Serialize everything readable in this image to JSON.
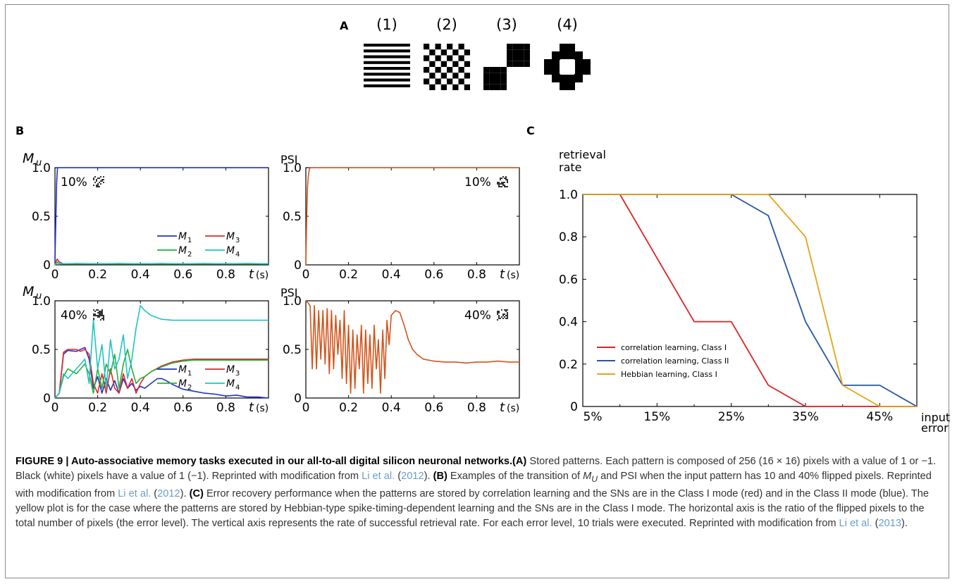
{
  "panel_a": {
    "label": "A",
    "patterns": [
      {
        "label": "(1)",
        "kind": "horizontal-stripes"
      },
      {
        "label": "(2)",
        "kind": "checkerboard"
      },
      {
        "label": "(3)",
        "kind": "diagonal-blocks"
      },
      {
        "label": "(4)",
        "kind": "ring"
      }
    ]
  },
  "panel_b": {
    "label": "B",
    "tick_y": [
      "0",
      "0.5",
      "1.0"
    ],
    "tick_x": [
      "0",
      "0.2",
      "0.4",
      "0.6",
      "0.8"
    ],
    "x_axis_label": "t",
    "x_axis_unit": "(s)",
    "legend": [
      {
        "sym": "M",
        "sub": "1",
        "color": "#1f32cc"
      },
      {
        "sym": "M",
        "sub": "3",
        "color": "#e02a2a"
      },
      {
        "sym": "M",
        "sub": "2",
        "color": "#22b33a"
      },
      {
        "sym": "M",
        "sub": "4",
        "color": "#22c2c2"
      }
    ],
    "plots": [
      {
        "ylabel": "M",
        "ylabel_sub": "u",
        "tag": "10%"
      },
      {
        "ylabel": "PSI",
        "ylabel_sub": "",
        "tag": "10%"
      },
      {
        "ylabel": "M",
        "ylabel_sub": "u",
        "tag": "40%"
      },
      {
        "ylabel": "PSI",
        "ylabel_sub": "",
        "tag": "40%"
      }
    ]
  },
  "chart_data": [
    {
      "type": "line",
      "title": "",
      "xlabel": "t (s)",
      "ylabel": "M_u",
      "xlim": [
        0,
        1.0
      ],
      "ylim": [
        0,
        1.0
      ],
      "annotation": "10%",
      "series": [
        {
          "name": "M1",
          "color": "#1f32cc",
          "x": [
            0,
            0.004,
            0.008,
            0.012,
            0.1,
            0.3,
            0.5,
            0.7,
            0.9,
            1.0
          ],
          "y": [
            0.05,
            0.45,
            0.85,
            1.0,
            1.0,
            1.0,
            1.0,
            1.0,
            1.0,
            1.0
          ]
        },
        {
          "name": "M3",
          "color": "#e02a2a",
          "x": [
            0,
            0.01,
            0.02,
            0.04,
            0.1,
            0.3,
            0.5,
            0.7,
            0.9,
            1.0
          ],
          "y": [
            0.0,
            0.06,
            0.03,
            0.01,
            0.01,
            0.01,
            0.01,
            0.01,
            0.01,
            0.01
          ]
        },
        {
          "name": "M2",
          "color": "#22b33a",
          "x": [
            0,
            0.01,
            0.03,
            0.1,
            0.3,
            0.5,
            0.7,
            0.9,
            1.0
          ],
          "y": [
            0.0,
            0.02,
            0.01,
            0.01,
            0.01,
            0.01,
            0.01,
            0.01,
            0.01
          ]
        },
        {
          "name": "M4",
          "color": "#22c2c2",
          "x": [
            0,
            0.01,
            0.03,
            0.1,
            0.2,
            0.3,
            0.4,
            0.5,
            0.6,
            0.7,
            0.8,
            0.9,
            1.0
          ],
          "y": [
            0.0,
            0.03,
            0.01,
            0.015,
            0.01,
            0.015,
            0.01,
            0.015,
            0.01,
            0.015,
            0.01,
            0.015,
            0.01
          ]
        }
      ]
    },
    {
      "type": "line",
      "title": "",
      "xlabel": "t (s)",
      "ylabel": "PSI",
      "xlim": [
        0,
        1.0
      ],
      "ylim": [
        0,
        1.0
      ],
      "annotation": "10%",
      "series": [
        {
          "color": "#d2541c",
          "x": [
            0,
            0.004,
            0.008,
            0.012,
            0.016,
            0.02,
            0.1,
            0.3,
            0.5,
            0.7,
            0.9,
            1.0
          ],
          "y": [
            0.0,
            0.5,
            0.8,
            0.92,
            0.98,
            1.0,
            1.0,
            1.0,
            1.0,
            1.0,
            1.0,
            1.0
          ]
        }
      ]
    },
    {
      "type": "line",
      "title": "",
      "xlabel": "t (s)",
      "ylabel": "M_u",
      "xlim": [
        0,
        1.0
      ],
      "ylim": [
        0,
        1.0
      ],
      "annotation": "40%",
      "series": [
        {
          "name": "M1",
          "color": "#1f32cc",
          "x": [
            0,
            0.02,
            0.04,
            0.06,
            0.1,
            0.12,
            0.14,
            0.16,
            0.18,
            0.2,
            0.22,
            0.24,
            0.26,
            0.28,
            0.3,
            0.32,
            0.34,
            0.36,
            0.38,
            0.4,
            0.42,
            0.45,
            0.48,
            0.5,
            0.52,
            0.55,
            0.6,
            0.65,
            0.7,
            0.75,
            0.8,
            0.85,
            0.9,
            0.95,
            1.0
          ],
          "y": [
            0.0,
            0.05,
            0.45,
            0.49,
            0.48,
            0.5,
            0.52,
            0.4,
            0.1,
            0.22,
            0.05,
            0.2,
            0.08,
            0.18,
            0.05,
            0.2,
            0.1,
            0.15,
            0.08,
            0.12,
            0.1,
            0.15,
            0.2,
            0.2,
            0.18,
            0.14,
            0.09,
            0.07,
            0.05,
            0.04,
            0.02,
            0.03,
            0.01,
            0.01,
            0.0
          ]
        },
        {
          "name": "M3",
          "color": "#e02a2a",
          "x": [
            0,
            0.02,
            0.04,
            0.06,
            0.1,
            0.12,
            0.14,
            0.16,
            0.18,
            0.2,
            0.22,
            0.24,
            0.26,
            0.28,
            0.3,
            0.32,
            0.34,
            0.36,
            0.38,
            0.4,
            0.42,
            0.45,
            0.5,
            0.55,
            0.6,
            0.65,
            0.7,
            0.8,
            0.9,
            1.0
          ],
          "y": [
            0.0,
            0.05,
            0.47,
            0.5,
            0.5,
            0.48,
            0.5,
            0.45,
            0.15,
            0.05,
            0.25,
            0.05,
            0.3,
            0.1,
            0.05,
            0.25,
            0.1,
            0.2,
            0.05,
            0.15,
            0.22,
            0.27,
            0.33,
            0.37,
            0.39,
            0.4,
            0.4,
            0.4,
            0.4,
            0.4
          ]
        },
        {
          "name": "M2",
          "color": "#22b33a",
          "x": [
            0,
            0.02,
            0.04,
            0.06,
            0.1,
            0.12,
            0.14,
            0.16,
            0.18,
            0.2,
            0.22,
            0.24,
            0.26,
            0.28,
            0.3,
            0.32,
            0.34,
            0.36,
            0.38,
            0.4,
            0.42,
            0.45,
            0.5,
            0.55,
            0.6,
            0.65,
            0.7,
            0.8,
            0.9,
            1.0
          ],
          "y": [
            0.0,
            0.05,
            0.22,
            0.3,
            0.25,
            0.3,
            0.35,
            0.25,
            0.05,
            0.3,
            0.1,
            0.35,
            0.25,
            0.45,
            0.1,
            0.35,
            0.5,
            0.3,
            0.15,
            0.2,
            0.22,
            0.27,
            0.32,
            0.36,
            0.38,
            0.39,
            0.39,
            0.39,
            0.39,
            0.39
          ]
        },
        {
          "name": "M4",
          "color": "#22c2c2",
          "x": [
            0,
            0.02,
            0.04,
            0.06,
            0.1,
            0.14,
            0.16,
            0.18,
            0.2,
            0.22,
            0.24,
            0.26,
            0.28,
            0.3,
            0.32,
            0.34,
            0.36,
            0.38,
            0.4,
            0.42,
            0.45,
            0.5,
            0.55,
            0.6,
            0.7,
            0.8,
            0.9,
            1.0
          ],
          "y": [
            0.0,
            0.05,
            0.25,
            0.2,
            0.3,
            0.4,
            0.15,
            0.8,
            0.3,
            0.55,
            0.1,
            0.6,
            0.3,
            0.4,
            0.65,
            0.2,
            0.4,
            0.72,
            0.95,
            0.9,
            0.85,
            0.81,
            0.8,
            0.8,
            0.8,
            0.8,
            0.8,
            0.8
          ]
        }
      ]
    },
    {
      "type": "line",
      "title": "",
      "xlabel": "t (s)",
      "ylabel": "PSI",
      "xlim": [
        0,
        1.0
      ],
      "ylim": [
        0,
        1.0
      ],
      "annotation": "40%",
      "series": [
        {
          "color": "#d2541c",
          "x": [
            0,
            0.01,
            0.02,
            0.03,
            0.04,
            0.05,
            0.06,
            0.07,
            0.08,
            0.09,
            0.1,
            0.11,
            0.12,
            0.13,
            0.14,
            0.15,
            0.16,
            0.17,
            0.18,
            0.19,
            0.2,
            0.21,
            0.22,
            0.23,
            0.24,
            0.25,
            0.26,
            0.27,
            0.28,
            0.29,
            0.3,
            0.31,
            0.32,
            0.33,
            0.34,
            0.35,
            0.36,
            0.37,
            0.38,
            0.39,
            0.4,
            0.42,
            0.44,
            0.46,
            0.48,
            0.5,
            0.52,
            0.55,
            0.6,
            0.65,
            0.7,
            0.75,
            0.8,
            0.85,
            0.9,
            0.95,
            1.0
          ],
          "y": [
            1.0,
            0.98,
            0.95,
            0.3,
            0.95,
            0.3,
            0.9,
            0.4,
            0.9,
            0.35,
            0.92,
            0.25,
            0.9,
            0.3,
            0.85,
            0.45,
            0.8,
            0.2,
            0.9,
            0.15,
            0.75,
            0.05,
            0.7,
            0.1,
            0.65,
            0.3,
            0.75,
            0.05,
            0.7,
            0.15,
            0.65,
            0.1,
            0.75,
            0.3,
            0.6,
            0.05,
            0.7,
            0.2,
            0.8,
            0.55,
            0.85,
            0.9,
            0.88,
            0.75,
            0.6,
            0.5,
            0.45,
            0.4,
            0.38,
            0.37,
            0.37,
            0.36,
            0.37,
            0.37,
            0.38,
            0.37,
            0.37
          ]
        }
      ]
    },
    {
      "type": "line",
      "title": "",
      "xlabel": "input error",
      "ylabel": "retrieval rate",
      "categories": [
        "5%",
        "15%",
        "25%",
        "35%",
        "45%"
      ],
      "x": [
        5,
        10,
        15,
        20,
        25,
        30,
        35,
        40,
        45,
        50
      ],
      "xlim": [
        5,
        50
      ],
      "ylim": [
        0,
        1.0
      ],
      "yticks": [
        "0",
        "0.2",
        "0.4",
        "0.6",
        "0.8",
        "1.0"
      ],
      "legend_position": "bottom-left",
      "series": [
        {
          "name": "correlation learning, Class I",
          "color": "#dd2222",
          "values": [
            1.0,
            1.0,
            0.7,
            0.4,
            0.4,
            0.1,
            0.0,
            0.0,
            0.0,
            0.0
          ]
        },
        {
          "name": "correlation learning, Class II",
          "color": "#2456a6",
          "values": [
            1.0,
            1.0,
            1.0,
            1.0,
            1.0,
            0.9,
            0.4,
            0.1,
            0.1,
            0.0
          ]
        },
        {
          "name": "Hebbian learning, Class I",
          "color": "#e4a416",
          "values": [
            1.0,
            1.0,
            1.0,
            1.0,
            1.0,
            1.0,
            0.8,
            0.1,
            0.0,
            0.0
          ]
        }
      ]
    }
  ],
  "panel_c": {
    "label": "C",
    "ylabel_line1": "retrieval",
    "ylabel_line2": "rate",
    "xlabel_line1": "input",
    "xlabel_line2": "error"
  },
  "caption": {
    "lead": "FIGURE 9 | Auto-associative memory tasks executed in our all-to-all digital silicon neuronal networks.",
    "a_label": "(A)",
    "a_text": " Stored patterns. Each pattern is composed of 256 (16 × 16) pixels with a value of 1 or −1. Black (white) pixels have a value of 1 (−1). Reprinted with modification from ",
    "cite1": "Li et al.",
    "paren1_open": " (",
    "year1": "2012",
    "paren1_close": "). ",
    "b_label": "(B)",
    "b_text1": " Examples of the transition of ",
    "b_mu": "M",
    "b_mu_sub": "U",
    "b_text2": " and PSI when the input pattern has 10 and 40% flipped pixels. Reprinted with modification from ",
    "cite2": "Li et al.",
    "paren2_open": " (",
    "year2": "2012",
    "paren2_close": "). ",
    "c_label": "(C)",
    "c_text": " Error recovery performance when the patterns are stored by correlation learning and the SNs are in the Class I mode (red) and in the Class II mode (blue). The yellow plot is for the case where the patterns are stored by Hebbian-type spike-timing-dependent learning and the SNs are in the Class I mode. The horizontal axis is the ratio of the flipped pixels to the total number of pixels (the error level). The vertical axis represents the rate of successful retrieval rate. For each error level, 10 trials were executed. Reprinted with modification from ",
    "cite3": "Li et al.",
    "paren3_open": " (",
    "year3": "2013",
    "paren3_close": ")."
  }
}
